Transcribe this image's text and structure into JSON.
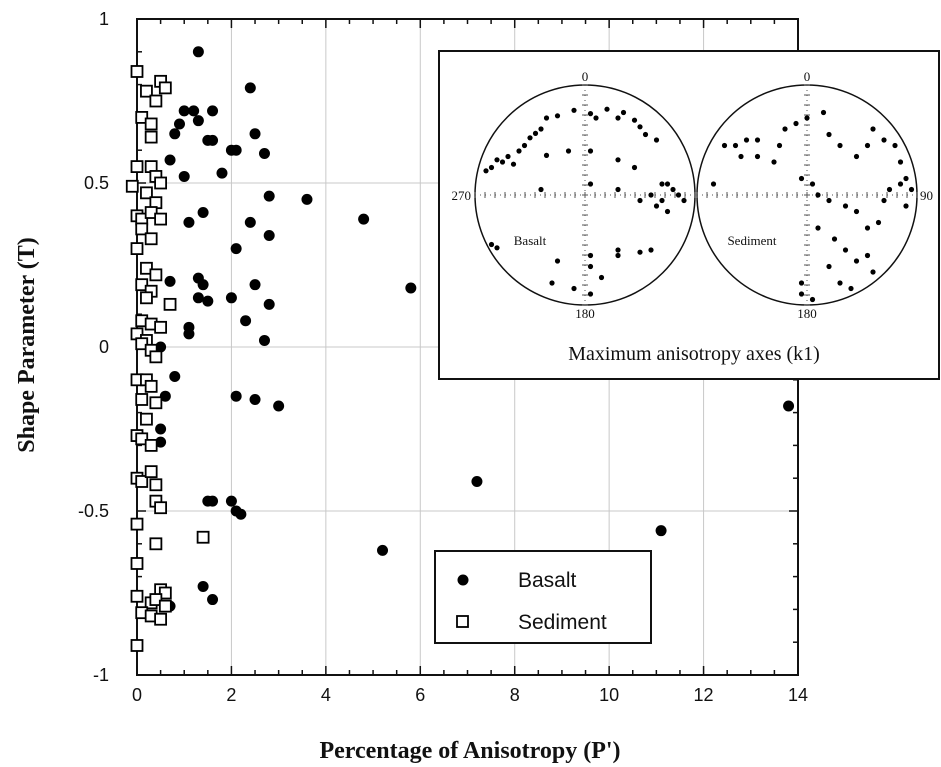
{
  "chart_data": [
    {
      "type": "scatter",
      "xlabel": "Percentage of Anisotropy (P')",
      "ylabel": "Shape Parameter (T)",
      "xlim": [
        0,
        14
      ],
      "ylim": [
        -1,
        1
      ],
      "xticks": [
        "0",
        "2",
        "4",
        "6",
        "8",
        "10",
        "12",
        "14"
      ],
      "yticks": [
        "1",
        "0.5",
        "0",
        "-0.5",
        "-1"
      ],
      "grid": true,
      "legend_position": "bottom-right",
      "series": [
        {
          "name": "Basalt",
          "marker": "filled-circle",
          "points": [
            [
              1.3,
              0.9
            ],
            [
              2.4,
              0.79
            ],
            [
              1.0,
              0.72
            ],
            [
              1.2,
              0.72
            ],
            [
              1.6,
              0.72
            ],
            [
              1.3,
              0.69
            ],
            [
              0.9,
              0.68
            ],
            [
              0.8,
              0.65
            ],
            [
              2.5,
              0.65
            ],
            [
              1.5,
              0.63
            ],
            [
              1.6,
              0.63
            ],
            [
              2.0,
              0.6
            ],
            [
              2.1,
              0.6
            ],
            [
              2.7,
              0.59
            ],
            [
              1.8,
              0.53
            ],
            [
              1.0,
              0.52
            ],
            [
              0.7,
              0.57
            ],
            [
              2.8,
              0.46
            ],
            [
              3.6,
              0.45
            ],
            [
              1.4,
              0.41
            ],
            [
              1.1,
              0.38
            ],
            [
              2.4,
              0.38
            ],
            [
              4.8,
              0.39
            ],
            [
              2.8,
              0.34
            ],
            [
              2.1,
              0.3
            ],
            [
              0.7,
              0.2
            ],
            [
              1.3,
              0.21
            ],
            [
              1.4,
              0.19
            ],
            [
              2.5,
              0.19
            ],
            [
              5.8,
              0.18
            ],
            [
              1.3,
              0.15
            ],
            [
              1.5,
              0.14
            ],
            [
              2.0,
              0.15
            ],
            [
              2.8,
              0.13
            ],
            [
              1.1,
              0.06
            ],
            [
              1.1,
              0.04
            ],
            [
              2.3,
              0.08
            ],
            [
              2.7,
              0.02
            ],
            [
              0.5,
              0.0
            ],
            [
              0.8,
              -0.09
            ],
            [
              0.6,
              -0.15
            ],
            [
              2.1,
              -0.15
            ],
            [
              2.5,
              -0.16
            ],
            [
              3.0,
              -0.18
            ],
            [
              13.8,
              -0.18
            ],
            [
              0.5,
              -0.25
            ],
            [
              0.5,
              -0.29
            ],
            [
              7.2,
              -0.41
            ],
            [
              1.5,
              -0.47
            ],
            [
              2.0,
              -0.47
            ],
            [
              1.6,
              -0.47
            ],
            [
              2.1,
              -0.5
            ],
            [
              2.2,
              -0.51
            ],
            [
              11.1,
              -0.56
            ],
            [
              5.2,
              -0.62
            ],
            [
              1.4,
              -0.73
            ],
            [
              1.6,
              -0.77
            ],
            [
              0.7,
              -0.79
            ]
          ]
        },
        {
          "name": "Sediment",
          "marker": "open-square",
          "points": [
            [
              0.0,
              0.84
            ],
            [
              0.5,
              0.81
            ],
            [
              0.6,
              0.79
            ],
            [
              0.2,
              0.78
            ],
            [
              0.4,
              0.75
            ],
            [
              0.1,
              0.7
            ],
            [
              0.3,
              0.68
            ],
            [
              0.3,
              0.64
            ],
            [
              0.0,
              0.55
            ],
            [
              0.3,
              0.55
            ],
            [
              0.4,
              0.52
            ],
            [
              0.5,
              0.5
            ],
            [
              -0.1,
              0.49
            ],
            [
              0.2,
              0.47
            ],
            [
              0.4,
              0.44
            ],
            [
              0.0,
              0.4
            ],
            [
              0.1,
              0.39
            ],
            [
              0.3,
              0.41
            ],
            [
              0.5,
              0.39
            ],
            [
              0.1,
              0.36
            ],
            [
              0.3,
              0.33
            ],
            [
              0.0,
              0.3
            ],
            [
              0.2,
              0.24
            ],
            [
              0.4,
              0.22
            ],
            [
              0.1,
              0.19
            ],
            [
              0.3,
              0.17
            ],
            [
              0.2,
              0.15
            ],
            [
              0.7,
              0.13
            ],
            [
              0.1,
              0.08
            ],
            [
              0.3,
              0.07
            ],
            [
              0.5,
              0.06
            ],
            [
              0.0,
              0.04
            ],
            [
              0.2,
              0.02
            ],
            [
              0.1,
              0.01
            ],
            [
              0.3,
              -0.01
            ],
            [
              0.4,
              -0.03
            ],
            [
              0.0,
              -0.1
            ],
            [
              0.2,
              -0.1
            ],
            [
              0.3,
              -0.12
            ],
            [
              0.1,
              -0.16
            ],
            [
              0.4,
              -0.17
            ],
            [
              0.2,
              -0.22
            ],
            [
              0.0,
              -0.27
            ],
            [
              0.1,
              -0.28
            ],
            [
              0.3,
              -0.3
            ],
            [
              0.0,
              -0.4
            ],
            [
              0.1,
              -0.41
            ],
            [
              0.3,
              -0.38
            ],
            [
              0.4,
              -0.42
            ],
            [
              0.4,
              -0.47
            ],
            [
              0.5,
              -0.49
            ],
            [
              0.0,
              -0.54
            ],
            [
              1.4,
              -0.58
            ],
            [
              0.4,
              -0.6
            ],
            [
              0.0,
              -0.66
            ],
            [
              0.5,
              -0.74
            ],
            [
              0.6,
              -0.75
            ],
            [
              0.0,
              -0.76
            ],
            [
              0.3,
              -0.78
            ],
            [
              0.4,
              -0.77
            ],
            [
              0.6,
              -0.79
            ],
            [
              0.1,
              -0.81
            ],
            [
              0.3,
              -0.82
            ],
            [
              0.5,
              -0.83
            ],
            [
              0.0,
              -0.91
            ]
          ]
        }
      ]
    },
    {
      "type": "scatter",
      "title": "Maximum anisotropy axes (k1)",
      "projection": "equal-area stereonet",
      "net_labels": {
        "north": "0",
        "south": "180",
        "west": "270",
        "east": "90"
      },
      "nets": [
        {
          "name": "Basalt",
          "points": [
            [
              -0.9,
              0.22
            ],
            [
              -0.85,
              0.25
            ],
            [
              -0.75,
              0.3
            ],
            [
              -0.8,
              0.32
            ],
            [
              -0.7,
              0.35
            ],
            [
              -0.65,
              0.28
            ],
            [
              -0.6,
              0.4
            ],
            [
              -0.55,
              0.45
            ],
            [
              -0.5,
              0.52
            ],
            [
              -0.45,
              0.56
            ],
            [
              -0.4,
              0.6
            ],
            [
              -0.35,
              0.7
            ],
            [
              -0.25,
              0.72
            ],
            [
              -0.1,
              0.77
            ],
            [
              0.05,
              0.74
            ],
            [
              0.1,
              0.7
            ],
            [
              0.2,
              0.78
            ],
            [
              0.3,
              0.7
            ],
            [
              0.35,
              0.75
            ],
            [
              0.45,
              0.68
            ],
            [
              0.5,
              0.62
            ],
            [
              0.55,
              0.55
            ],
            [
              0.65,
              0.5
            ],
            [
              -0.35,
              0.36
            ],
            [
              -0.15,
              0.4
            ],
            [
              0.05,
              0.4
            ],
            [
              0.3,
              0.32
            ],
            [
              0.45,
              0.25
            ],
            [
              -0.4,
              0.05
            ],
            [
              0.05,
              0.1
            ],
            [
              0.3,
              0.05
            ],
            [
              0.5,
              -0.05
            ],
            [
              0.6,
              0.0
            ],
            [
              0.65,
              -0.1
            ],
            [
              0.7,
              0.1
            ],
            [
              0.75,
              -0.15
            ],
            [
              0.85,
              0.0
            ],
            [
              0.9,
              -0.05
            ],
            [
              0.8,
              0.05
            ],
            [
              0.7,
              -0.05
            ],
            [
              0.75,
              0.1
            ],
            [
              -0.85,
              -0.45
            ],
            [
              -0.8,
              -0.48
            ],
            [
              -0.25,
              -0.6
            ],
            [
              0.05,
              -0.55
            ],
            [
              0.05,
              -0.65
            ],
            [
              0.3,
              -0.5
            ],
            [
              0.3,
              -0.55
            ],
            [
              0.5,
              -0.52
            ],
            [
              0.6,
              -0.5
            ],
            [
              0.15,
              -0.75
            ],
            [
              -0.3,
              -0.8
            ],
            [
              -0.1,
              -0.85
            ],
            [
              0.05,
              -0.9
            ]
          ]
        },
        {
          "name": "Sediment",
          "points": [
            [
              -0.85,
              0.1
            ],
            [
              -0.75,
              0.45
            ],
            [
              -0.65,
              0.45
            ],
            [
              -0.55,
              0.5
            ],
            [
              -0.45,
              0.5
            ],
            [
              -0.6,
              0.35
            ],
            [
              -0.45,
              0.35
            ],
            [
              -0.3,
              0.3
            ],
            [
              -0.25,
              0.45
            ],
            [
              -0.2,
              0.6
            ],
            [
              -0.1,
              0.65
            ],
            [
              0.0,
              0.7
            ],
            [
              0.15,
              0.75
            ],
            [
              0.2,
              0.55
            ],
            [
              0.3,
              0.45
            ],
            [
              0.45,
              0.35
            ],
            [
              0.55,
              0.45
            ],
            [
              0.6,
              0.6
            ],
            [
              0.7,
              0.5
            ],
            [
              0.8,
              0.45
            ],
            [
              0.85,
              0.3
            ],
            [
              0.9,
              0.15
            ],
            [
              0.95,
              0.05
            ],
            [
              0.9,
              -0.1
            ],
            [
              0.85,
              0.1
            ],
            [
              0.75,
              0.05
            ],
            [
              0.7,
              -0.05
            ],
            [
              0.65,
              -0.25
            ],
            [
              0.55,
              -0.3
            ],
            [
              0.45,
              -0.15
            ],
            [
              0.35,
              -0.1
            ],
            [
              0.2,
              -0.05
            ],
            [
              0.1,
              0.0
            ],
            [
              0.05,
              0.1
            ],
            [
              -0.05,
              0.15
            ],
            [
              0.1,
              -0.3
            ],
            [
              0.25,
              -0.4
            ],
            [
              0.35,
              -0.5
            ],
            [
              0.45,
              -0.6
            ],
            [
              0.55,
              -0.55
            ],
            [
              0.6,
              -0.7
            ],
            [
              0.2,
              -0.65
            ],
            [
              0.3,
              -0.8
            ],
            [
              0.4,
              -0.85
            ],
            [
              -0.05,
              -0.8
            ],
            [
              -0.05,
              -0.9
            ],
            [
              0.05,
              -0.95
            ]
          ]
        }
      ]
    }
  ]
}
